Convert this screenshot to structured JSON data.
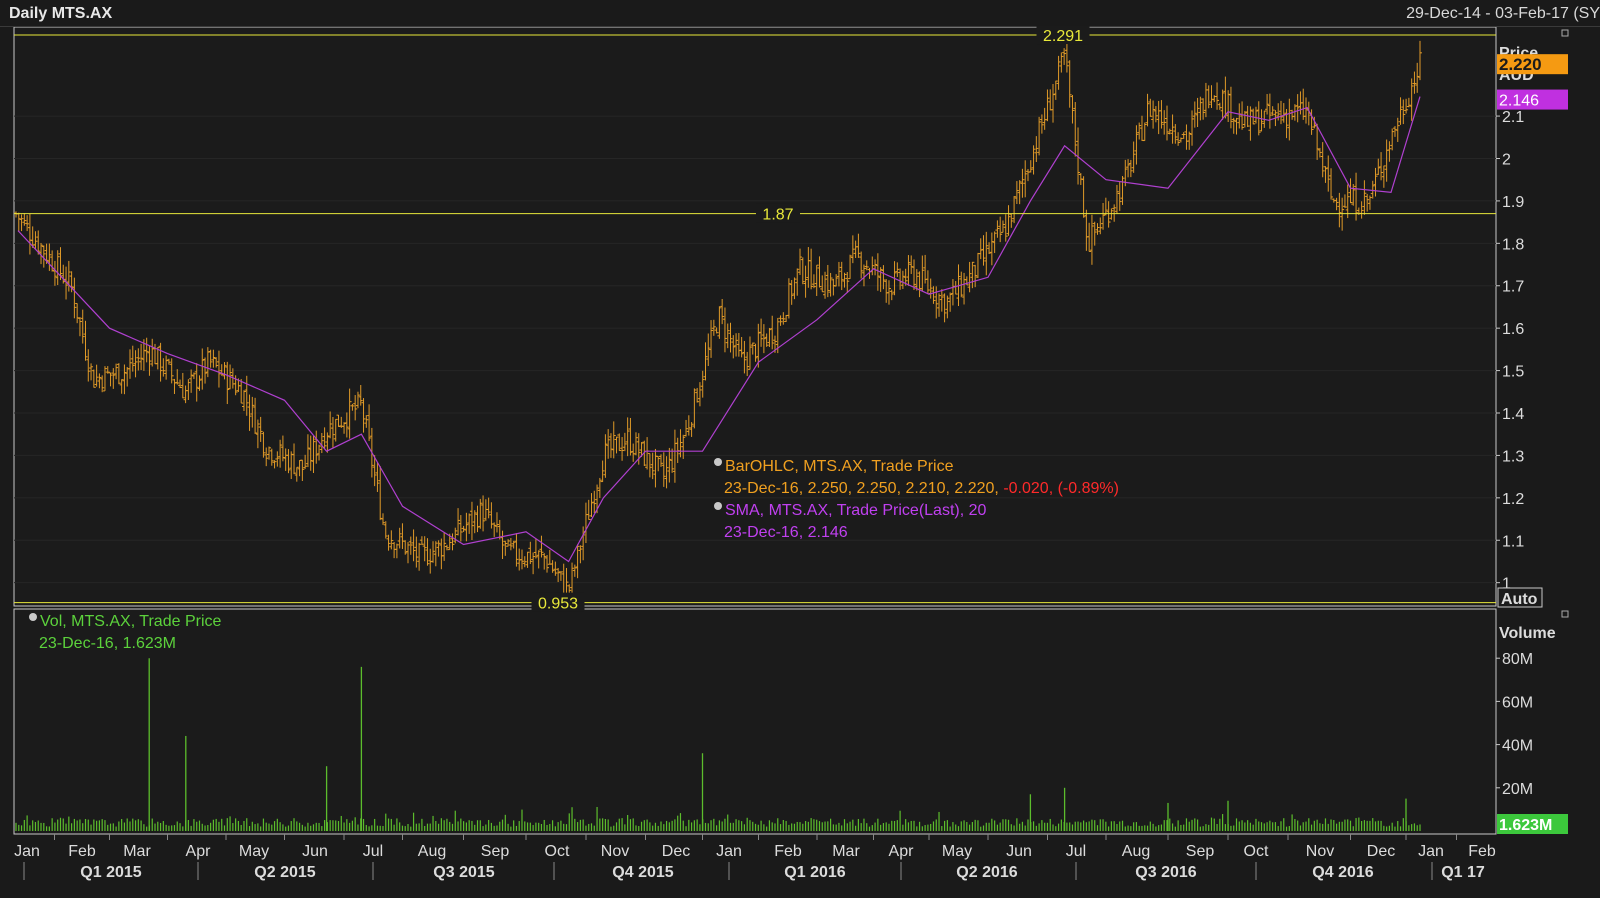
{
  "header": {
    "title": "Daily MTS.AX",
    "date_range": "29-Dec-14 - 03-Feb-17 (SY"
  },
  "colors": {
    "background": "#1a1a1a",
    "bars": "#e09a28",
    "sma": "#b040d0",
    "volume": "#5cbd2c",
    "reference_lines": "#e8e83a",
    "last_price_tag": "#f59a12",
    "sma_tag": "#c030e0",
    "volume_tag": "#3cc83c",
    "change_negative": "#ff2a2a"
  },
  "legend": {
    "ohlc": {
      "title": "BarOHLC, MTS.AX, Trade Price",
      "values": "23-Dec-16, 2.250, 2.250, 2.210, 2.220,",
      "change": "-0.020, (-0.89%)"
    },
    "sma": {
      "title": "SMA, MTS.AX, Trade Price(Last),  20",
      "values": "23-Dec-16, 2.146"
    },
    "volume": {
      "title": "Vol, MTS.AX, Trade Price",
      "values": "23-Dec-16, 1.623M"
    }
  },
  "chart_data": [
    {
      "type": "bar",
      "name": "BarOHLC, MTS.AX, Trade Price",
      "axis_title": "Price",
      "axis_unit": "AUD",
      "y_ticks": [
        "1",
        "1.1",
        "1.2",
        "1.3",
        "1.4",
        "1.5",
        "1.6",
        "1.7",
        "1.8",
        "1.9",
        "2",
        "2.1"
      ],
      "ylim": [
        0.945,
        2.31
      ],
      "scale_mode": "Auto",
      "reference_lines": [
        {
          "label": "2.291",
          "value": 2.291
        },
        {
          "label": "1.87",
          "value": 1.87
        },
        {
          "label": "0.953",
          "value": 0.953
        }
      ],
      "last_price_label": "2.220",
      "last_price": 2.22,
      "sma_label": "2.146",
      "sma_value": 2.146,
      "sma_period": 20,
      "x_months": [
        "Jan",
        "Feb",
        "Mar",
        "Apr",
        "May",
        "Jun",
        "Jul",
        "Aug",
        "Sep",
        "Oct",
        "Nov",
        "Dec",
        "Jan",
        "Feb",
        "Mar",
        "Apr",
        "May",
        "Jun",
        "Jul",
        "Aug",
        "Sep",
        "Oct",
        "Nov",
        "Dec",
        "Jan",
        "Feb"
      ],
      "x_quarters": [
        "Q1 2015",
        "Q2 2015",
        "Q3 2015",
        "Q4 2015",
        "Q1 2016",
        "Q2 2016",
        "Q3 2016",
        "Q4 2016",
        "Q1 17"
      ],
      "close_path": [
        [
          "Jan-15",
          1.87
        ],
        [
          "Jan-15",
          1.7
        ],
        [
          "Feb-15",
          1.48
        ],
        [
          "Feb-15",
          1.5
        ],
        [
          "Mar-15",
          1.55
        ],
        [
          "Mar-15",
          1.45
        ],
        [
          "Apr-15",
          1.52
        ],
        [
          "Apr-15",
          1.45
        ],
        [
          "May-15",
          1.32
        ],
        [
          "May-15",
          1.27
        ],
        [
          "Jun-15",
          1.36
        ],
        [
          "Jun-15",
          1.42
        ],
        [
          "Jul-15",
          1.12
        ],
        [
          "Jul-15",
          1.06
        ],
        [
          "Aug-15",
          1.09
        ],
        [
          "Aug-15",
          1.17
        ],
        [
          "Sep-15",
          1.07
        ],
        [
          "Sep-15",
          1.06
        ],
        [
          "Oct-15",
          0.98
        ],
        [
          "Oct-15",
          1.3
        ],
        [
          "Nov-15",
          1.34
        ],
        [
          "Nov-15",
          1.25
        ],
        [
          "Dec-15",
          1.36
        ],
        [
          "Dec-15",
          1.63
        ],
        [
          "Jan-16",
          1.52
        ],
        [
          "Jan-16",
          1.6
        ],
        [
          "Feb-16",
          1.74
        ],
        [
          "Feb-16",
          1.7
        ],
        [
          "Mar-16",
          1.77
        ],
        [
          "Mar-16",
          1.7
        ],
        [
          "Apr-16",
          1.73
        ],
        [
          "Apr-16",
          1.66
        ],
        [
          "May-16",
          1.72
        ],
        [
          "May-16",
          1.84
        ],
        [
          "Jun-16",
          2.0
        ],
        [
          "Jun-16",
          2.24
        ],
        [
          "Jul-16",
          1.8
        ],
        [
          "Jul-16",
          1.94
        ],
        [
          "Aug-16",
          2.12
        ],
        [
          "Aug-16",
          2.05
        ],
        [
          "Sep-16",
          2.17
        ],
        [
          "Sep-16",
          2.08
        ],
        [
          "Oct-16",
          2.1
        ],
        [
          "Oct-16",
          2.11
        ],
        [
          "Nov-16",
          1.9
        ],
        [
          "Nov-16",
          1.9
        ],
        [
          "Dec-16",
          2.05
        ],
        [
          "Dec-16",
          2.22
        ]
      ],
      "sma_path": [
        [
          "Jan-15",
          1.83
        ],
        [
          "Feb-15",
          1.6
        ],
        [
          "Mar-15",
          1.54
        ],
        [
          "Apr-15",
          1.49
        ],
        [
          "May-15",
          1.43
        ],
        [
          "Jun-15",
          1.31
        ],
        [
          "Jun-15",
          1.35
        ],
        [
          "Jul-15",
          1.18
        ],
        [
          "Aug-15",
          1.09
        ],
        [
          "Sep-15",
          1.12
        ],
        [
          "Oct-15",
          1.05
        ],
        [
          "Oct-15",
          1.2
        ],
        [
          "Nov-15",
          1.31
        ],
        [
          "Dec-15",
          1.31
        ],
        [
          "Jan-16",
          1.52
        ],
        [
          "Feb-16",
          1.62
        ],
        [
          "Mar-16",
          1.74
        ],
        [
          "Apr-16",
          1.68
        ],
        [
          "May-16",
          1.72
        ],
        [
          "Jun-16",
          1.9
        ],
        [
          "Jun-16",
          2.03
        ],
        [
          "Jul-16",
          1.95
        ],
        [
          "Aug-16",
          1.93
        ],
        [
          "Sep-16",
          2.11
        ],
        [
          "Oct-16",
          2.09
        ],
        [
          "Oct-16",
          2.12
        ],
        [
          "Nov-16",
          1.93
        ],
        [
          "Dec-16",
          1.92
        ],
        [
          "Dec-16",
          2.146
        ]
      ]
    },
    {
      "type": "bar",
      "name": "Vol, MTS.AX, Trade Price",
      "axis_title": "Volume",
      "y_ticks": [
        "20M",
        "40M",
        "60M",
        "80M"
      ],
      "ylim": [
        0,
        90
      ],
      "last_volume_label": "1.623M",
      "last_volume": 1.623,
      "spikes": [
        [
          "Mar-15",
          80
        ],
        [
          "Mar-15",
          44
        ],
        [
          "Jun-15",
          30
        ],
        [
          "Jun-15",
          76
        ],
        [
          "Dec-15",
          36
        ],
        [
          "Jun-16",
          17
        ],
        [
          "Jun-16",
          20
        ],
        [
          "Aug-16",
          13
        ],
        [
          "Sep-16",
          14
        ],
        [
          "Dec-16",
          15
        ]
      ]
    }
  ]
}
